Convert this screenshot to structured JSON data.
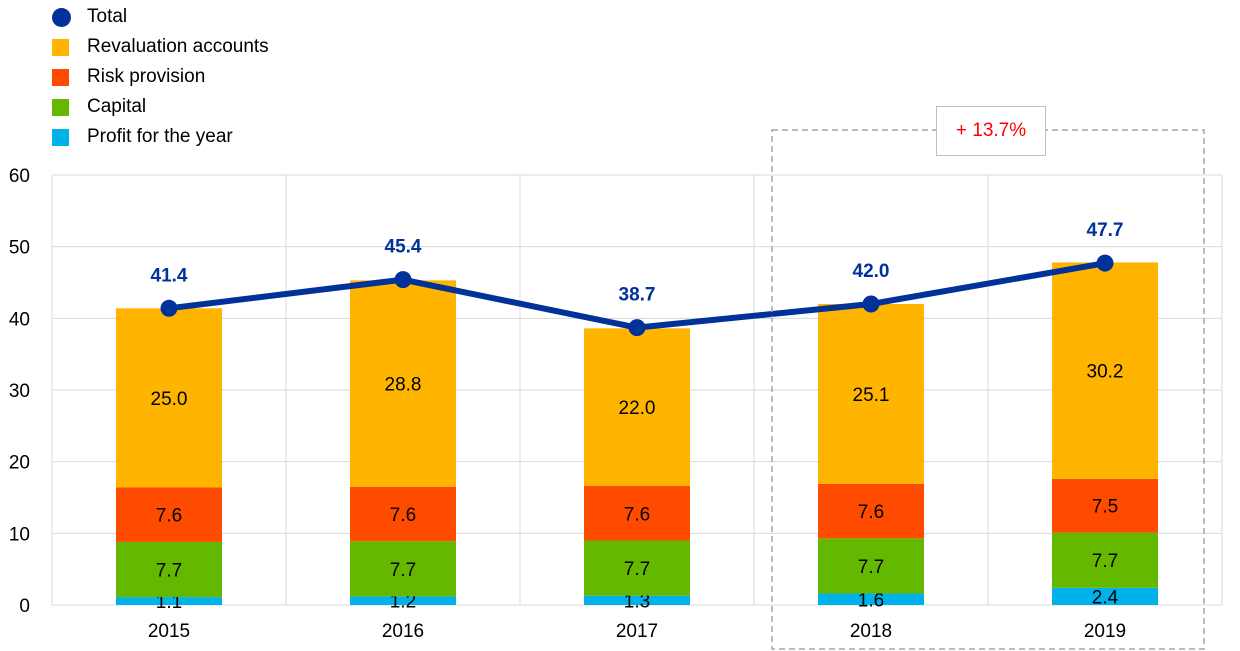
{
  "chart_data": {
    "type": "bar",
    "stacked": true,
    "categories": [
      "2015",
      "2016",
      "2017",
      "2018",
      "2019"
    ],
    "series": [
      {
        "name": "Profit for the year",
        "color": "#00b1ea",
        "values": [
          1.1,
          1.2,
          1.3,
          1.6,
          2.4
        ]
      },
      {
        "name": "Capital",
        "color": "#65b800",
        "values": [
          7.7,
          7.7,
          7.7,
          7.7,
          7.7
        ]
      },
      {
        "name": "Risk provision",
        "color": "#ff4b00",
        "values": [
          7.6,
          7.6,
          7.6,
          7.6,
          7.5
        ]
      },
      {
        "name": "Revaluation accounts",
        "color": "#ffb400",
        "values": [
          25.0,
          28.8,
          22.0,
          25.1,
          30.2
        ]
      }
    ],
    "line": {
      "name": "Total",
      "type": "line",
      "color": "#003299",
      "values": [
        41.4,
        45.4,
        38.7,
        42.0,
        47.7
      ]
    },
    "ylim": [
      0,
      60
    ],
    "yticks": [
      0,
      10,
      20,
      30,
      40,
      50,
      60
    ],
    "grid": true,
    "legend_position": "top-left",
    "annotation": {
      "text": "+ 13.7%",
      "color": "#ff0000",
      "spans": [
        "2018",
        "2019"
      ]
    }
  },
  "legend": [
    {
      "label": "Total",
      "color": "#003299",
      "shape": "circle"
    },
    {
      "label": "Revaluation accounts",
      "color": "#ffb400",
      "shape": "square"
    },
    {
      "label": "Risk provision",
      "color": "#ff4b00",
      "shape": "square"
    },
    {
      "label": "Capital",
      "color": "#65b800",
      "shape": "square"
    },
    {
      "label": "Profit for the year",
      "color": "#00b1ea",
      "shape": "square"
    }
  ]
}
